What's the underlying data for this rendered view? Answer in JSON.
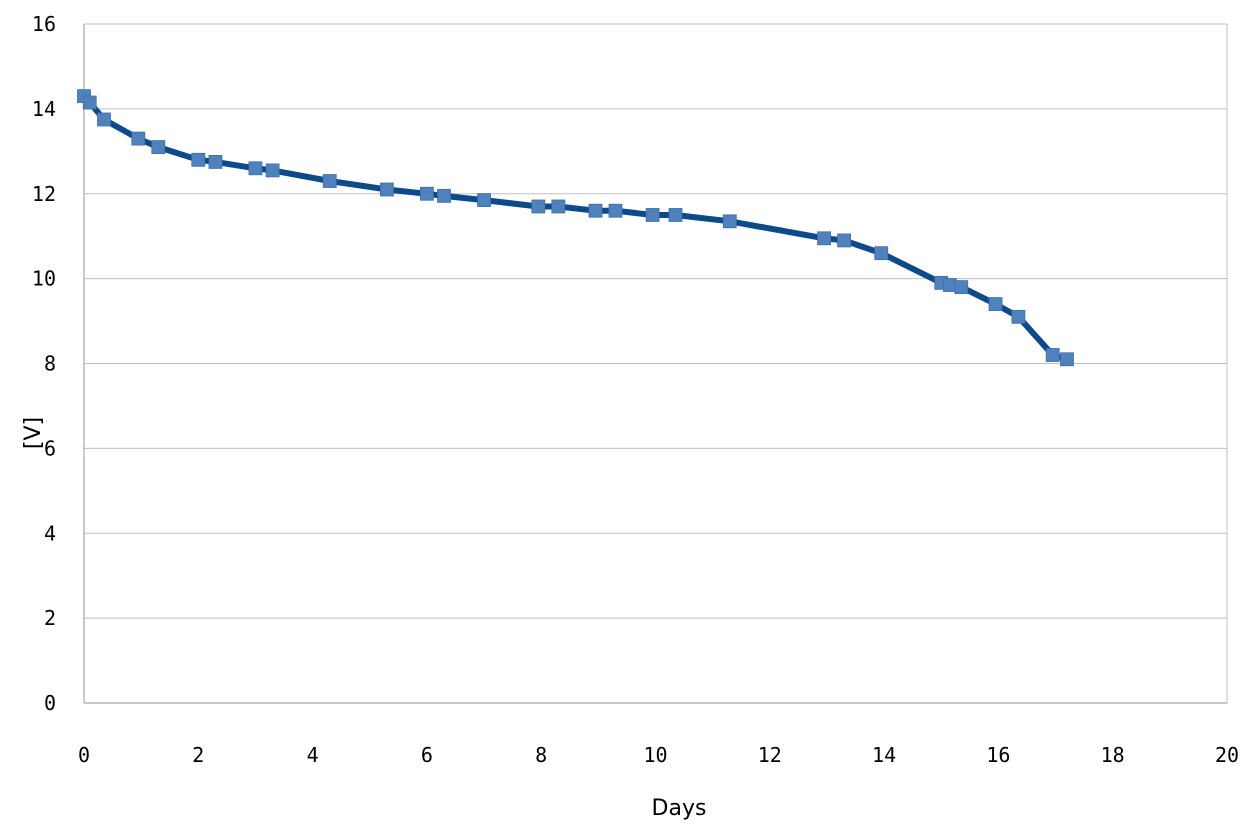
{
  "chart_data": {
    "type": "line",
    "xlabel": "Days",
    "ylabel": "[V]",
    "xlim": [
      0,
      20
    ],
    "ylim": [
      0,
      16
    ],
    "xticks": [
      "0",
      "2",
      "4",
      "6",
      "8",
      "10",
      "12",
      "14",
      "16",
      "18",
      "20"
    ],
    "yticks": [
      "0",
      "2",
      "4",
      "6",
      "8",
      "10",
      "12",
      "14",
      "16"
    ],
    "grid": "horizontal",
    "legend": "none",
    "colors": {
      "line": "#0d4a8a",
      "marker": "#4f81bd",
      "grid": "#bfbfbf",
      "axis": "#a6a6a6"
    },
    "series": [
      {
        "x": [
          0.0,
          0.1,
          0.35,
          0.95,
          1.3,
          2.0,
          2.3,
          3.0,
          3.3,
          4.3,
          5.3,
          6.0,
          6.3,
          7.0,
          7.95,
          8.3,
          8.95,
          9.3,
          9.95,
          10.35,
          11.3,
          12.95,
          13.3,
          13.95,
          15.0,
          15.15,
          15.35,
          15.95,
          16.35,
          16.95,
          17.2
        ],
        "y": [
          14.3,
          14.15,
          13.75,
          13.3,
          13.1,
          12.8,
          12.75,
          12.6,
          12.55,
          12.3,
          12.1,
          12.0,
          11.95,
          11.85,
          11.7,
          11.7,
          11.6,
          11.6,
          11.5,
          11.5,
          11.35,
          10.95,
          10.9,
          10.6,
          9.9,
          9.85,
          9.8,
          9.4,
          9.1,
          8.2,
          8.1
        ]
      }
    ]
  }
}
